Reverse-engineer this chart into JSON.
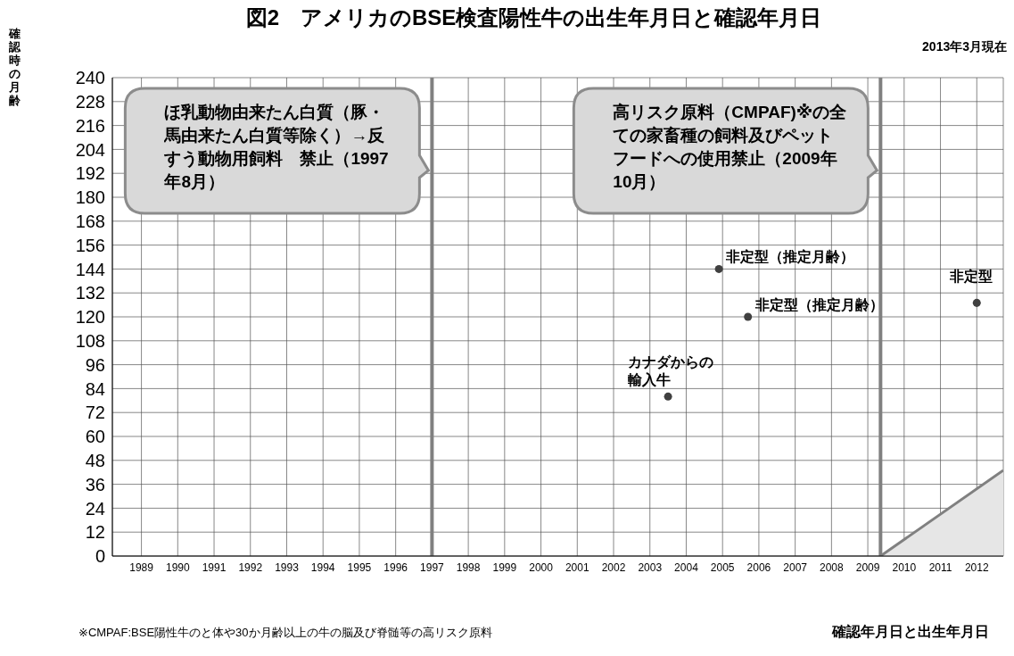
{
  "chart_data": {
    "type": "scatter",
    "title": "図2　アメリカのBSE検査陽性牛の出生年月日と確認年月日",
    "subtitle": "2013年3月現在",
    "xlabel": "確認年月日と出生年月日",
    "ylabel": "確認時の月齢",
    "annotations": [
      "※CMPAF:BSE陽性牛のと体や30か月齢以上の牛の脳及び脊髄等の高リスク原料",
      {
        "text": "カナダからの輸入牛",
        "x": 2003.5,
        "y": 80
      },
      {
        "text": "非定型（推定月齢）",
        "x": 2004.9,
        "y": 144
      },
      {
        "text": "非定型（推定月齢）",
        "x": 2005.7,
        "y": 120
      },
      {
        "text": "非定型",
        "x": 2012.0,
        "y": 127
      }
    ],
    "x": [
      2003.5,
      2004.9,
      2005.7,
      2012.0
    ],
    "series": [
      {
        "color": "#404040",
        "values": [
          80,
          144,
          120,
          127
        ]
      },
      {
        "type": "area",
        "color": "#e6e6e6",
        "marker": "none",
        "x": [
          2009.35,
          2012.73
        ],
        "values": [
          0,
          43
        ]
      }
    ],
    "ref_lines": [
      {
        "axis": "x",
        "value": 1997,
        "label": "ほ乳動物由来たん白質（豚・馬由来たん白質等除く）→反すう動物用飼料　禁止（1997年8月）",
        "color": "#808080"
      },
      {
        "axis": "x",
        "value": 2009.35,
        "label": "高リスク原料（CMPAF)※の全ての家畜種の飼料及びペットフードへの使用禁止（2009年10月）",
        "color": "#808080"
      }
    ],
    "xlim": [
      1988.2,
      2012.73
    ],
    "xticks": [
      1989,
      1990,
      1991,
      1992,
      1993,
      1994,
      1995,
      1996,
      1997,
      1998,
      1999,
      2000,
      2001,
      2002,
      2003,
      2004,
      2005,
      2006,
      2007,
      2008,
      2009,
      2010,
      2011,
      2012
    ],
    "ylim": [
      0,
      240
    ],
    "yticks": [
      0,
      12,
      24,
      36,
      48,
      60,
      72,
      84,
      96,
      108,
      120,
      132,
      144,
      156,
      168,
      180,
      192,
      204,
      216,
      228,
      240
    ],
    "grid": true,
    "marker": "circle"
  }
}
